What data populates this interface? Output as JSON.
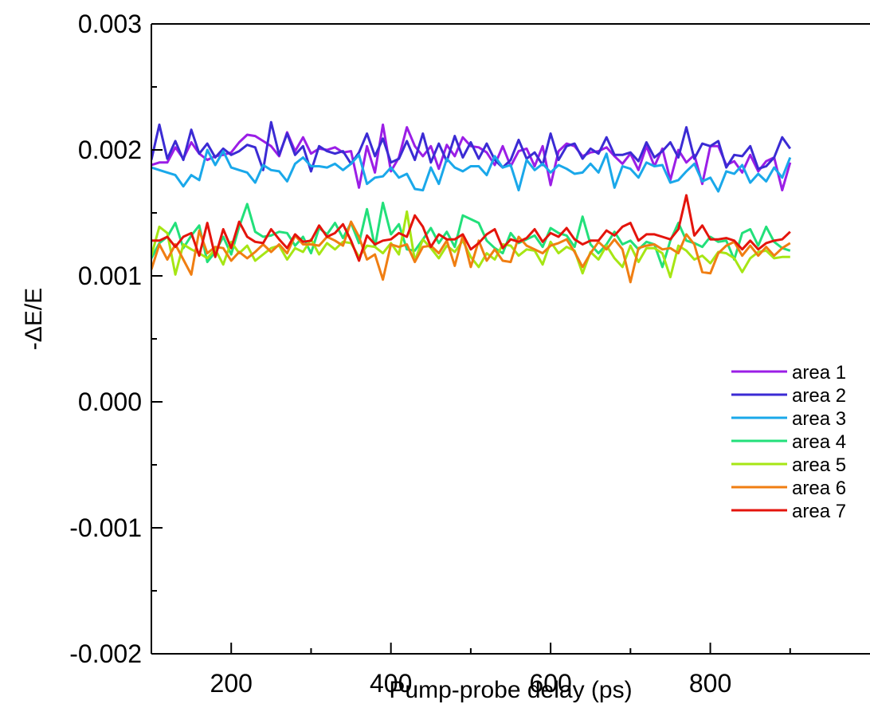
{
  "chart_data": {
    "type": "line",
    "xlabel": "Pump-probe delay (ps)",
    "ylabel": "-ΔE/E",
    "xlim": [
      100,
      1000
    ],
    "ylim": [
      -0.002,
      0.003
    ],
    "x_ticks": [
      200,
      400,
      600,
      800
    ],
    "x_tick_labels": [
      "200",
      "400",
      "600",
      "800"
    ],
    "y_ticks": [
      -0.002,
      -0.001,
      0.0,
      0.001,
      0.002,
      0.003
    ],
    "y_tick_labels": [
      "-0.002",
      "-0.001",
      "0.000",
      "0.001",
      "0.002",
      "0.003"
    ],
    "legend_position": "bottom-right",
    "x": [
      100,
      110,
      120,
      130,
      140,
      150,
      160,
      170,
      180,
      190,
      200,
      210,
      220,
      230,
      240,
      250,
      260,
      270,
      280,
      290,
      300,
      310,
      320,
      330,
      340,
      350,
      360,
      370,
      380,
      390,
      400,
      410,
      420,
      430,
      440,
      450,
      460,
      470,
      480,
      490,
      500,
      510,
      520,
      530,
      540,
      550,
      560,
      570,
      580,
      590,
      600,
      610,
      620,
      630,
      640,
      650,
      660,
      670,
      680,
      690,
      700,
      710,
      720,
      730,
      740,
      750,
      760,
      770,
      780,
      790,
      800,
      810,
      820,
      830,
      840,
      850,
      860,
      870,
      880,
      890,
      900
    ],
    "series": [
      {
        "name": "area 1",
        "color": "#9b1ee6",
        "values": [
          0.00188,
          0.0019,
          0.0019,
          0.00202,
          0.00193,
          0.00206,
          0.00197,
          0.00192,
          0.00195,
          0.00196,
          0.00198,
          0.00206,
          0.00212,
          0.00211,
          0.00207,
          0.00203,
          0.00195,
          0.00214,
          0.00199,
          0.0021,
          0.00197,
          0.00201,
          0.002,
          0.00202,
          0.00198,
          0.00199,
          0.0017,
          0.00203,
          0.00182,
          0.0022,
          0.00183,
          0.00194,
          0.00218,
          0.00203,
          0.00195,
          0.00203,
          0.00185,
          0.00204,
          0.00195,
          0.0021,
          0.00203,
          0.00202,
          0.00198,
          0.00188,
          0.00203,
          0.00187,
          0.00199,
          0.00201,
          0.00187,
          0.00203,
          0.00172,
          0.00199,
          0.00205,
          0.00203,
          0.00195,
          0.00198,
          0.00199,
          0.00202,
          0.00195,
          0.00189,
          0.00197,
          0.00184,
          0.00203,
          0.00187,
          0.00201,
          0.00176,
          0.002,
          0.0019,
          0.00196,
          0.00173,
          0.00203,
          0.00203,
          0.00188,
          0.00191,
          0.00182,
          0.00196,
          0.00183,
          0.00191,
          0.00194,
          0.00168,
          0.0019
        ]
      },
      {
        "name": "area 2",
        "color": "#3b2bd4",
        "values": [
          0.00192,
          0.0022,
          0.00193,
          0.00207,
          0.00192,
          0.00216,
          0.00197,
          0.00205,
          0.00194,
          0.00201,
          0.00196,
          0.00199,
          0.00204,
          0.00202,
          0.00184,
          0.00222,
          0.00196,
          0.00213,
          0.00196,
          0.00203,
          0.00183,
          0.00203,
          0.00199,
          0.00197,
          0.00199,
          0.00189,
          0.00198,
          0.00213,
          0.00195,
          0.00209,
          0.0019,
          0.00193,
          0.00207,
          0.00192,
          0.00213,
          0.0019,
          0.00205,
          0.00191,
          0.00211,
          0.00194,
          0.00206,
          0.00193,
          0.00205,
          0.00192,
          0.00186,
          0.00192,
          0.00208,
          0.00193,
          0.00198,
          0.00188,
          0.00213,
          0.00192,
          0.00203,
          0.00205,
          0.00193,
          0.00201,
          0.00197,
          0.0021,
          0.00196,
          0.00196,
          0.00198,
          0.00191,
          0.00206,
          0.00194,
          0.00199,
          0.00206,
          0.00194,
          0.00218,
          0.00193,
          0.00205,
          0.00203,
          0.00207,
          0.00186,
          0.00196,
          0.00195,
          0.00203,
          0.00185,
          0.00187,
          0.00194,
          0.0021,
          0.00201
        ]
      },
      {
        "name": "area 3",
        "color": "#1aa8ea",
        "values": [
          0.00186,
          0.00184,
          0.00182,
          0.0018,
          0.00171,
          0.0018,
          0.00176,
          0.002,
          0.00188,
          0.00199,
          0.00186,
          0.00184,
          0.00182,
          0.00174,
          0.00188,
          0.00184,
          0.00183,
          0.00175,
          0.00189,
          0.00194,
          0.00187,
          0.00187,
          0.00186,
          0.00189,
          0.00184,
          0.00189,
          0.00196,
          0.00173,
          0.00178,
          0.00179,
          0.00186,
          0.00178,
          0.00181,
          0.00169,
          0.00168,
          0.00186,
          0.00173,
          0.00193,
          0.00186,
          0.00183,
          0.00187,
          0.00187,
          0.0018,
          0.00195,
          0.00186,
          0.00188,
          0.00168,
          0.00192,
          0.00184,
          0.00189,
          0.00182,
          0.00188,
          0.00185,
          0.00181,
          0.00182,
          0.00189,
          0.00182,
          0.00197,
          0.0017,
          0.00187,
          0.00185,
          0.00178,
          0.0019,
          0.00187,
          0.00188,
          0.00174,
          0.00176,
          0.00183,
          0.00189,
          0.00175,
          0.00178,
          0.00167,
          0.00183,
          0.00181,
          0.00188,
          0.00174,
          0.00181,
          0.00175,
          0.00186,
          0.00178,
          0.00194
        ]
      },
      {
        "name": "area 4",
        "color": "#22e07a",
        "values": [
          0.00114,
          0.00126,
          0.00131,
          0.00142,
          0.00122,
          0.00132,
          0.0014,
          0.00111,
          0.00119,
          0.00131,
          0.00117,
          0.00139,
          0.00157,
          0.00135,
          0.00131,
          0.00132,
          0.00135,
          0.00134,
          0.00124,
          0.00131,
          0.00118,
          0.00138,
          0.00133,
          0.00142,
          0.0013,
          0.00142,
          0.00126,
          0.00153,
          0.00123,
          0.00158,
          0.00133,
          0.00141,
          0.00121,
          0.0012,
          0.00129,
          0.00138,
          0.00126,
          0.00135,
          0.00123,
          0.00148,
          0.00145,
          0.00142,
          0.00128,
          0.00122,
          0.00118,
          0.00134,
          0.00126,
          0.00129,
          0.00132,
          0.00123,
          0.00138,
          0.00134,
          0.00132,
          0.00123,
          0.00147,
          0.00125,
          0.00118,
          0.00125,
          0.00135,
          0.00125,
          0.00128,
          0.00121,
          0.00127,
          0.00125,
          0.00107,
          0.00128,
          0.00142,
          0.00128,
          0.00126,
          0.00123,
          0.00131,
          0.00127,
          0.00128,
          0.00113,
          0.00134,
          0.00137,
          0.00124,
          0.00139,
          0.00127,
          0.00122,
          0.0012
        ]
      },
      {
        "name": "area 5",
        "color": "#a6e614",
        "values": [
          0.00116,
          0.00139,
          0.00134,
          0.00101,
          0.00125,
          0.00121,
          0.00118,
          0.00114,
          0.00121,
          0.00109,
          0.00127,
          0.00118,
          0.00124,
          0.00112,
          0.00117,
          0.00122,
          0.00124,
          0.00113,
          0.00122,
          0.00119,
          0.00129,
          0.00117,
          0.00126,
          0.00121,
          0.00127,
          0.00126,
          0.00115,
          0.00124,
          0.00123,
          0.00118,
          0.00126,
          0.00117,
          0.00151,
          0.00112,
          0.00129,
          0.00122,
          0.00114,
          0.00124,
          0.00119,
          0.00128,
          0.00115,
          0.00107,
          0.00118,
          0.00113,
          0.00125,
          0.00124,
          0.00116,
          0.00121,
          0.0012,
          0.00109,
          0.00127,
          0.00118,
          0.00123,
          0.0012,
          0.00102,
          0.00119,
          0.00113,
          0.00124,
          0.00114,
          0.00107,
          0.00124,
          0.00111,
          0.00122,
          0.00122,
          0.00118,
          0.00099,
          0.00124,
          0.0012,
          0.00113,
          0.00116,
          0.0011,
          0.00119,
          0.00118,
          0.00114,
          0.00103,
          0.00114,
          0.00119,
          0.0012,
          0.00114,
          0.00115,
          0.00115
        ]
      },
      {
        "name": "area 6",
        "color": "#f07e12",
        "values": [
          0.00105,
          0.00125,
          0.00113,
          0.00125,
          0.00113,
          0.00101,
          0.00136,
          0.00118,
          0.00123,
          0.00122,
          0.00112,
          0.00119,
          0.00114,
          0.00119,
          0.00125,
          0.00119,
          0.00125,
          0.00118,
          0.00132,
          0.00125,
          0.00125,
          0.00124,
          0.00131,
          0.00128,
          0.00124,
          0.00143,
          0.00131,
          0.00113,
          0.00117,
          0.00097,
          0.00125,
          0.00123,
          0.00125,
          0.00111,
          0.00123,
          0.00124,
          0.00118,
          0.00128,
          0.00108,
          0.00132,
          0.00107,
          0.00128,
          0.00112,
          0.00121,
          0.00112,
          0.00111,
          0.00131,
          0.00124,
          0.00121,
          0.00118,
          0.00124,
          0.00126,
          0.00129,
          0.00119,
          0.00107,
          0.00118,
          0.00127,
          0.00121,
          0.00129,
          0.00121,
          0.00095,
          0.00122,
          0.00124,
          0.00125,
          0.00121,
          0.00122,
          0.00118,
          0.00133,
          0.00125,
          0.00103,
          0.00102,
          0.00118,
          0.00124,
          0.00127,
          0.00116,
          0.00124,
          0.00116,
          0.00123,
          0.00116,
          0.00122,
          0.00126
        ]
      },
      {
        "name": "area 7",
        "color": "#e4140c",
        "values": [
          0.00128,
          0.00128,
          0.00131,
          0.00123,
          0.00131,
          0.00134,
          0.00116,
          0.00142,
          0.00115,
          0.00137,
          0.00122,
          0.00143,
          0.00131,
          0.00127,
          0.00126,
          0.00137,
          0.00129,
          0.00122,
          0.00133,
          0.00127,
          0.00128,
          0.0014,
          0.00131,
          0.00134,
          0.00141,
          0.00128,
          0.00112,
          0.00132,
          0.00125,
          0.00128,
          0.00129,
          0.00134,
          0.00131,
          0.00148,
          0.00139,
          0.00123,
          0.00133,
          0.00129,
          0.00129,
          0.00133,
          0.00121,
          0.00126,
          0.00133,
          0.00137,
          0.00122,
          0.00129,
          0.00127,
          0.0013,
          0.00137,
          0.00127,
          0.00134,
          0.00131,
          0.00138,
          0.00129,
          0.00125,
          0.00128,
          0.00128,
          0.00136,
          0.00132,
          0.00139,
          0.00142,
          0.00128,
          0.00133,
          0.00133,
          0.00131,
          0.00129,
          0.00137,
          0.00164,
          0.00132,
          0.0014,
          0.00129,
          0.00129,
          0.0013,
          0.00128,
          0.00121,
          0.00128,
          0.00121,
          0.00126,
          0.00128,
          0.00129,
          0.00135
        ]
      }
    ]
  }
}
